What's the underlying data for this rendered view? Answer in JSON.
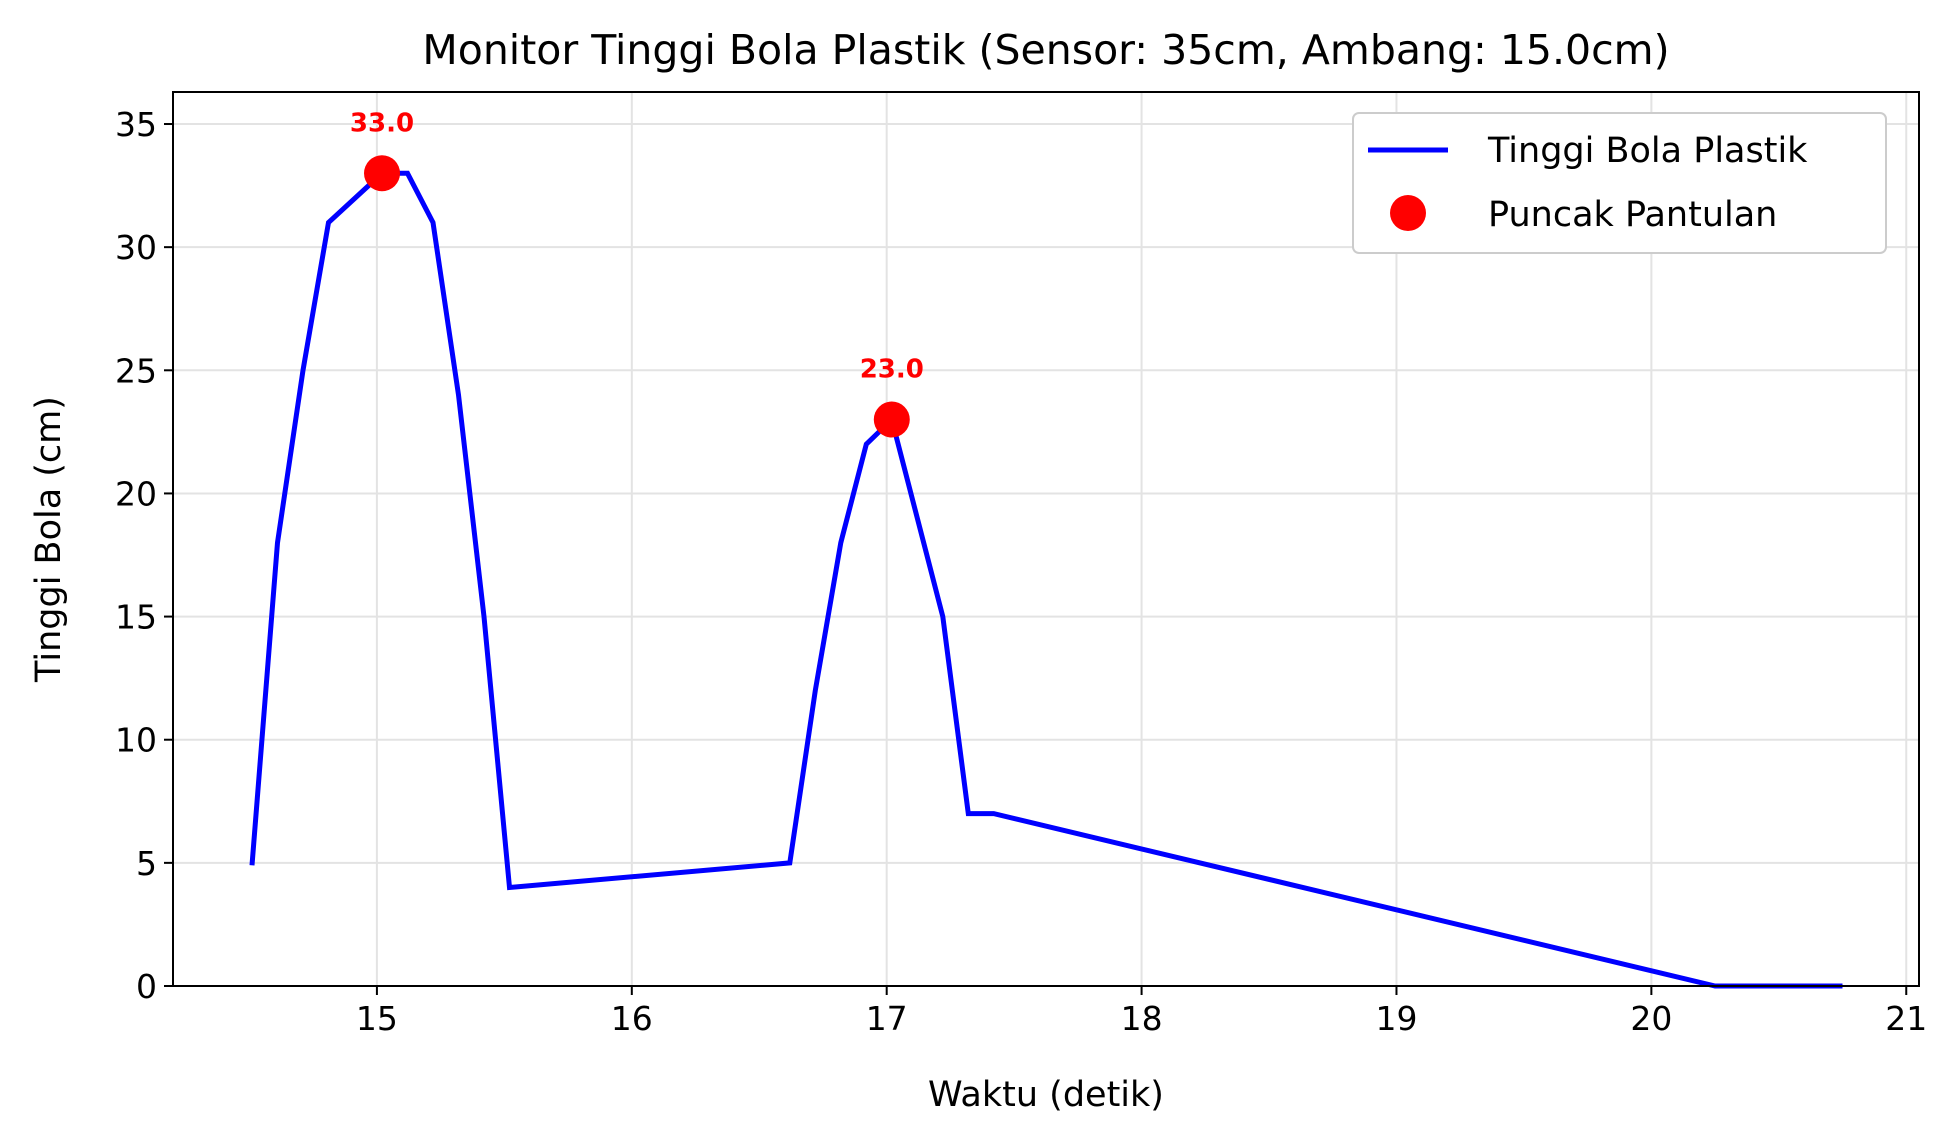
{
  "chart_data": {
    "type": "line",
    "title": "Monitor Tinggi Bola Plastik (Sensor: 35cm, Ambang: 15.0cm)",
    "xlabel": "Waktu (detik)",
    "ylabel": "Tinggi Bola (cm)",
    "xlim": [
      14.2,
      21.05
    ],
    "ylim": [
      0,
      36.3
    ],
    "xticks": [
      15,
      16,
      17,
      18,
      19,
      20,
      21
    ],
    "yticks": [
      0,
      5,
      10,
      15,
      20,
      25,
      30,
      35
    ],
    "grid": true,
    "legend_position": "top-right",
    "series": [
      {
        "name": "Tinggi Bola Plastik",
        "color": "#0000ff",
        "x": [
          14.51,
          14.61,
          14.71,
          14.81,
          15.02,
          15.12,
          15.22,
          15.32,
          15.42,
          15.52,
          16.62,
          16.72,
          16.82,
          16.92,
          17.02,
          17.12,
          17.22,
          17.32,
          17.42,
          20.25,
          20.75
        ],
        "y": [
          4.9,
          18,
          25,
          31,
          33,
          33,
          31,
          24,
          15,
          4,
          5,
          12,
          18,
          22,
          23,
          19,
          15,
          7,
          7,
          0,
          0
        ]
      },
      {
        "name": "Puncak Pantulan",
        "color": "#ff0000",
        "marker": "circle",
        "x": [
          15.02,
          17.02
        ],
        "y": [
          33.0,
          23.0
        ],
        "labels": [
          "33.0",
          "23.0"
        ]
      }
    ]
  }
}
